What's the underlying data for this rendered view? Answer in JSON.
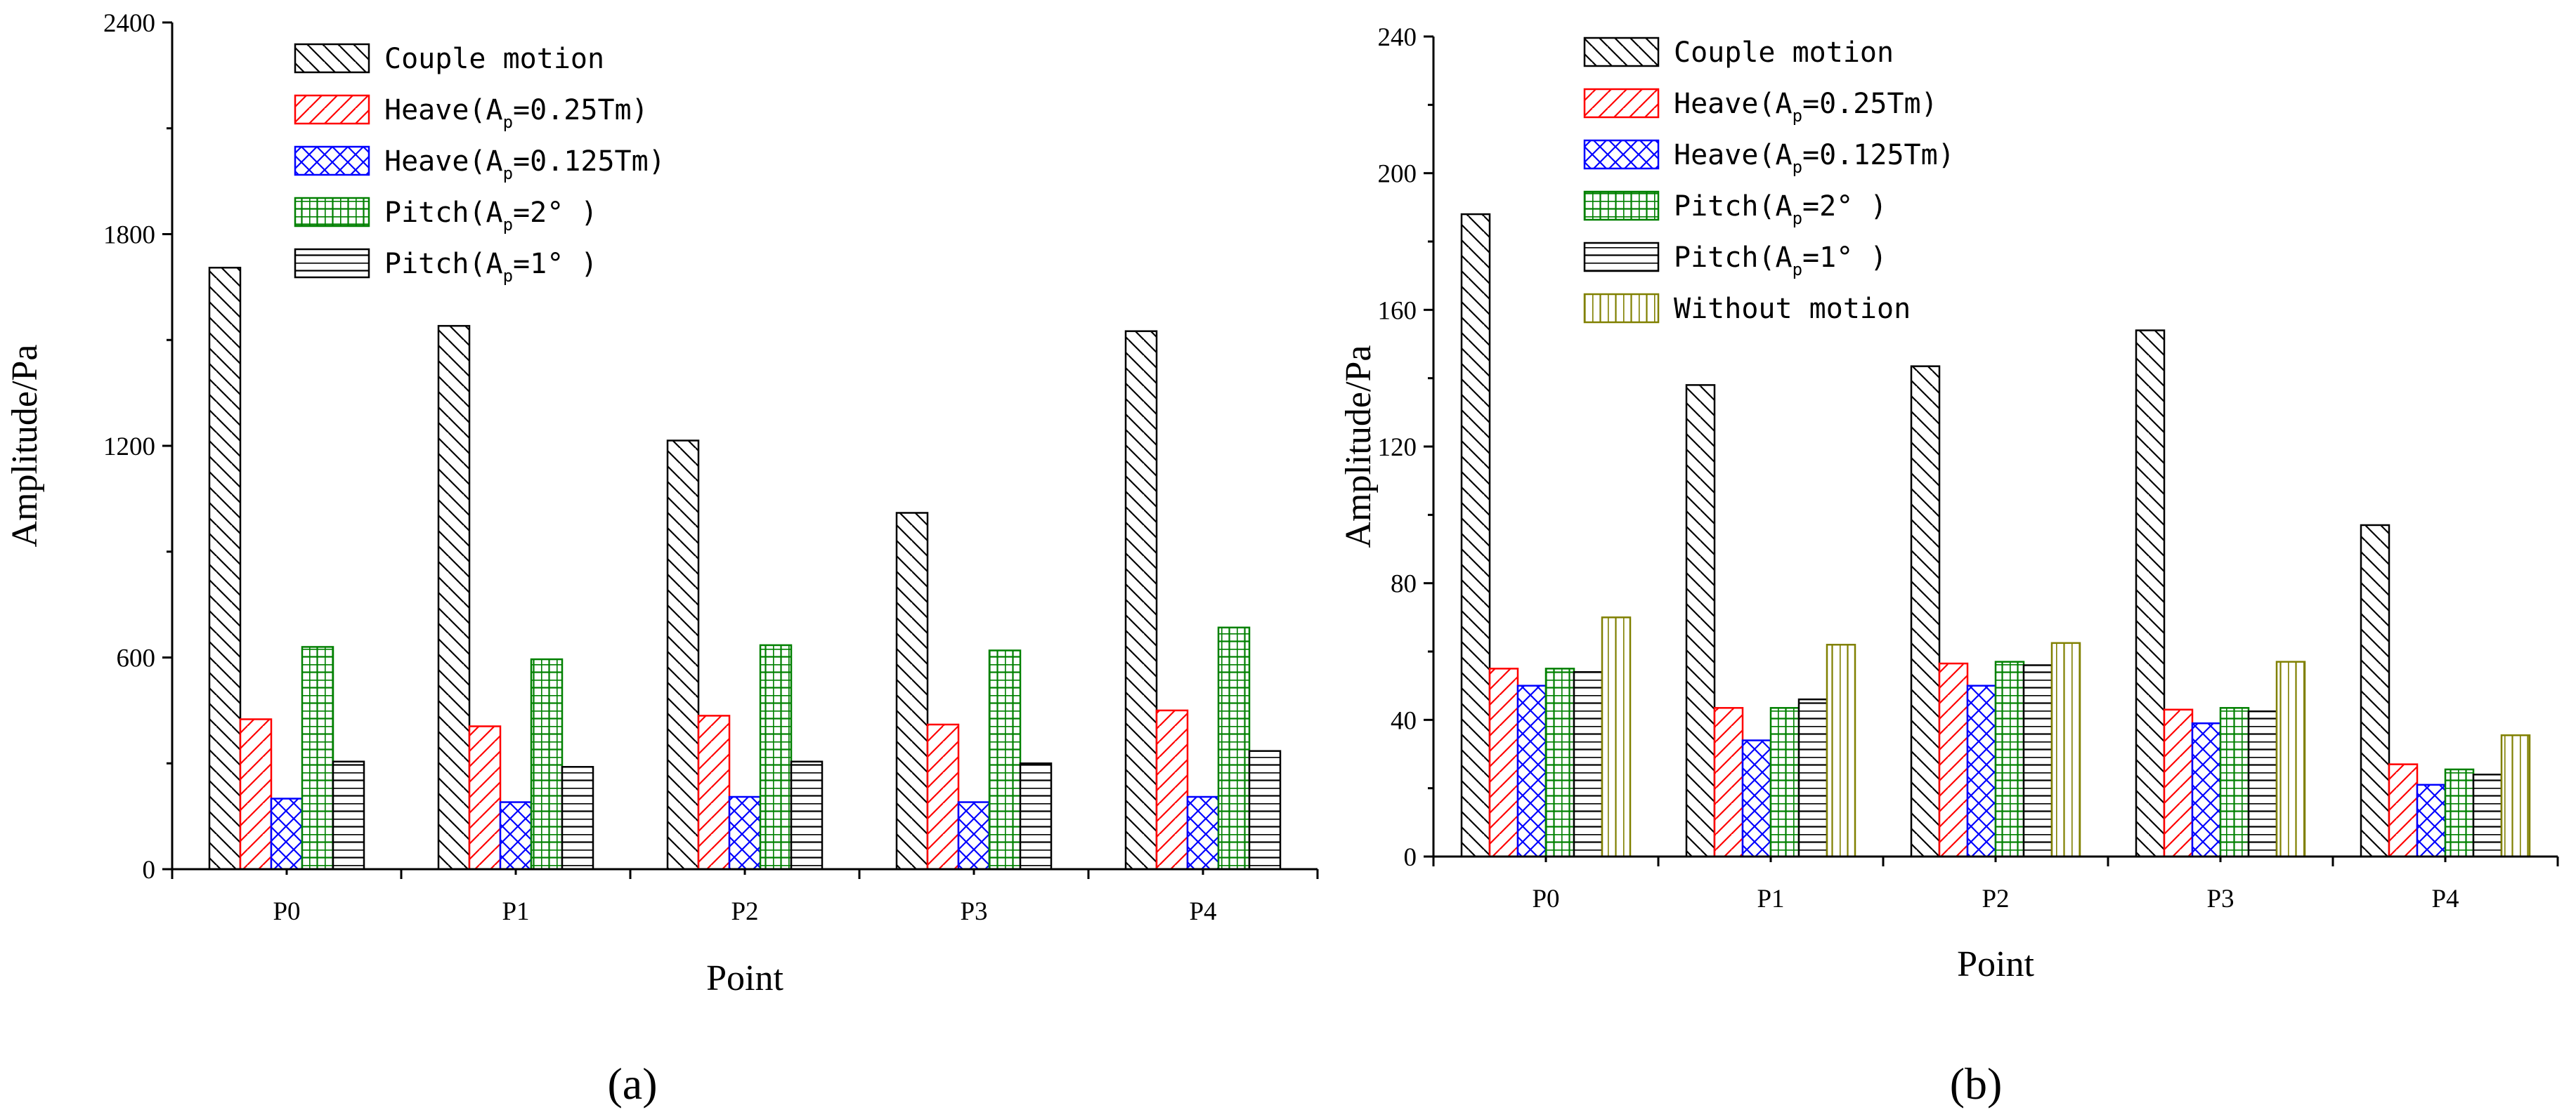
{
  "chart_data": [
    {
      "type": "bar",
      "panel_label": "(a)",
      "categories": [
        "P0",
        "P1",
        "P2",
        "P3",
        "P4"
      ],
      "xlabel": "Point",
      "ylabel": "Amplitude/Pa",
      "ylim": [
        0,
        2400
      ],
      "yticks": [
        "0",
        "600",
        "1200",
        "1800",
        "2400"
      ],
      "legend_position": "top-center",
      "series": [
        {
          "name": "Couple motion",
          "legend_main": "Couple motion",
          "legend_sub": "",
          "legend_tail": "",
          "color": "#000000",
          "pattern": "backslash",
          "values": [
            1705,
            1540,
            1215,
            1010,
            1525
          ]
        },
        {
          "name": "Heave(Ap=0.25Tm)",
          "legend_main": "Heave(A",
          "legend_sub": "p",
          "legend_tail": "=0.25Tm)",
          "color": "#ff0000",
          "pattern": "slash",
          "values": [
            425,
            405,
            435,
            410,
            450
          ]
        },
        {
          "name": "Heave(Ap=0.125Tm)",
          "legend_main": "Heave(A",
          "legend_sub": "p",
          "legend_tail": "=0.125Tm)",
          "color": "#0000ff",
          "pattern": "cross",
          "values": [
            200,
            190,
            205,
            190,
            205
          ]
        },
        {
          "name": "Pitch(Ap=2°)",
          "legend_main": "Pitch(A",
          "legend_sub": "p",
          "legend_tail": "=2° )",
          "color": "#008000",
          "pattern": "grid",
          "values": [
            630,
            595,
            635,
            620,
            685
          ]
        },
        {
          "name": "Pitch(Ap=1°)",
          "legend_main": "Pitch(A",
          "legend_sub": "p",
          "legend_tail": "=1° )",
          "color": "#000000",
          "pattern": "horizontal",
          "values": [
            305,
            290,
            305,
            300,
            335
          ]
        }
      ]
    },
    {
      "type": "bar",
      "panel_label": "(b)",
      "categories": [
        "P0",
        "P1",
        "P2",
        "P3",
        "P4"
      ],
      "xlabel": "Point",
      "ylabel": "Amplitude/Pa",
      "ylim": [
        0,
        240
      ],
      "yticks": [
        "0",
        "40",
        "80",
        "120",
        "160",
        "200",
        "240"
      ],
      "legend_position": "top-center",
      "series": [
        {
          "name": "Couple motion",
          "legend_main": "Couple motion",
          "legend_sub": "",
          "legend_tail": "",
          "color": "#000000",
          "pattern": "backslash",
          "values": [
            188,
            138,
            143.5,
            154,
            97
          ]
        },
        {
          "name": "Heave(Ap=0.25Tm)",
          "legend_main": "Heave(A",
          "legend_sub": "p",
          "legend_tail": "=0.25Tm)",
          "color": "#ff0000",
          "pattern": "slash",
          "values": [
            55,
            43.5,
            56.5,
            43,
            27
          ]
        },
        {
          "name": "Heave(Ap=0.125Tm)",
          "legend_main": "Heave(A",
          "legend_sub": "p",
          "legend_tail": "=0.125Tm)",
          "color": "#0000ff",
          "pattern": "cross",
          "values": [
            50,
            34,
            50,
            39,
            21
          ]
        },
        {
          "name": "Pitch(Ap=2°)",
          "legend_main": "Pitch(A",
          "legend_sub": "p",
          "legend_tail": "=2° )",
          "color": "#008000",
          "pattern": "grid",
          "values": [
            55,
            43.5,
            57,
            43.5,
            25.5
          ]
        },
        {
          "name": "Pitch(Ap=1°)",
          "legend_main": "Pitch(A",
          "legend_sub": "p",
          "legend_tail": "=1° )",
          "color": "#000000",
          "pattern": "horizontal",
          "values": [
            54,
            46,
            56,
            42.5,
            24
          ]
        },
        {
          "name": "Without motion",
          "legend_main": "Without motion",
          "legend_sub": "",
          "legend_tail": "",
          "color": "#808000",
          "pattern": "vertical",
          "values": [
            70,
            62,
            62.5,
            57,
            35.5
          ]
        }
      ]
    }
  ]
}
